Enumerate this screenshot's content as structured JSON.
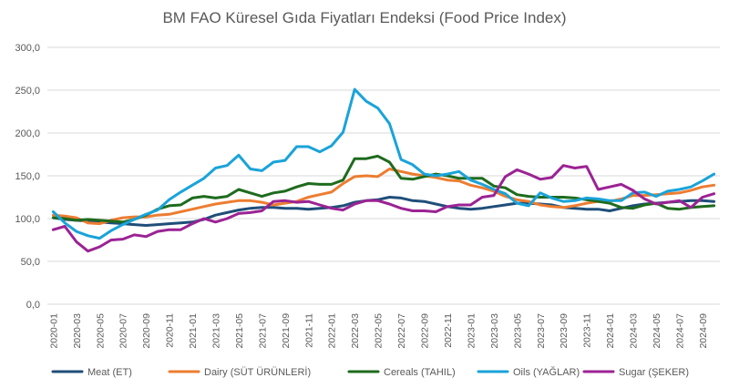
{
  "chart_data": {
    "type": "line",
    "title": "BM FAO Küresel Gıda Fiyatları Endeksi (Food Price Index)",
    "xlabel": "",
    "ylabel": "",
    "ylim": [
      0,
      300
    ],
    "yticks": [
      "0,0",
      "50,0",
      "100,0",
      "150,0",
      "200,0",
      "250,0",
      "300,0"
    ],
    "grid": true,
    "legend_position": "bottom",
    "x": [
      "2020-01",
      "2020-02",
      "2020-03",
      "2020-04",
      "2020-05",
      "2020-06",
      "2020-07",
      "2020-08",
      "2020-09",
      "2020-10",
      "2020-11",
      "2020-12",
      "2021-01",
      "2021-02",
      "2021-03",
      "2021-04",
      "2021-05",
      "2021-06",
      "2021-07",
      "2021-08",
      "2021-09",
      "2021-10",
      "2021-11",
      "2021-12",
      "2022-01",
      "2022-02",
      "2022-03",
      "2022-04",
      "2022-05",
      "2022-06",
      "2022-07",
      "2022-08",
      "2022-09",
      "2022-10",
      "2022-11",
      "2022-12",
      "2023-01",
      "2023-02",
      "2023-03",
      "2023-04",
      "2023-05",
      "2023-06",
      "2023-07",
      "2023-08",
      "2023-09",
      "2023-10",
      "2023-11",
      "2023-12",
      "2024-01",
      "2024-02",
      "2024-03",
      "2024-04",
      "2024-05",
      "2024-06",
      "2024-07",
      "2024-08",
      "2024-09",
      "2024-10"
    ],
    "xtick_labels": [
      "2020-01",
      "2020-03",
      "2020-05",
      "2020-07",
      "2020-09",
      "2020-11",
      "2021-01",
      "2021-03",
      "2021-05",
      "2021-07",
      "2021-09",
      "2021-11",
      "2022-01",
      "2022-03",
      "2022-05",
      "2022-07",
      "2022-09",
      "2022-11",
      "2023-01",
      "2023-03",
      "2023-05",
      "2023-07",
      "2023-09",
      "2023-11",
      "2024-01",
      "2024-03",
      "2024-05",
      "2024-07",
      "2024-09"
    ],
    "series": [
      {
        "name": "Meat (ET)",
        "color": "#1f4e79",
        "values": [
          101,
          99,
          98,
          97,
          96,
          95,
          94,
          93,
          92,
          93,
          94,
          95,
          96,
          99,
          104,
          107,
          110,
          112,
          113,
          113,
          112,
          112,
          111,
          112,
          113,
          115,
          119,
          121,
          122,
          125,
          124,
          121,
          120,
          117,
          114,
          112,
          111,
          112,
          114,
          116,
          118,
          118,
          117,
          116,
          113,
          112,
          111,
          111,
          109,
          112,
          115,
          117,
          118,
          119,
          120,
          121,
          121,
          120
        ],
        "label_pos": "2024-09"
      },
      {
        "name": "Dairy (SÜT ÜRÜNLERİ)",
        "color": "#ed7d31",
        "values": [
          104,
          103,
          101,
          95,
          94,
          98,
          101,
          102,
          102,
          104,
          105,
          108,
          111,
          114,
          117,
          119,
          121,
          121,
          119,
          116,
          118,
          120,
          125,
          128,
          131,
          141,
          149,
          150,
          149,
          158,
          155,
          152,
          150,
          148,
          145,
          144,
          139,
          136,
          132,
          126,
          122,
          120,
          116,
          114,
          113,
          115,
          118,
          120,
          120,
          123,
          127,
          127,
          128,
          129,
          130,
          133,
          137,
          139
        ],
        "label_pos": "2024-09"
      },
      {
        "name": "Cereals (TAHIL)",
        "color": "#1e6b1e",
        "values": [
          101,
          100,
          98,
          99,
          98,
          97,
          96,
          99,
          104,
          111,
          115,
          116,
          124,
          126,
          124,
          126,
          134,
          130,
          126,
          130,
          132,
          137,
          141,
          140,
          140,
          145,
          170,
          170,
          173,
          166,
          147,
          146,
          149,
          152,
          150,
          147,
          147,
          147,
          138,
          136,
          128,
          126,
          125,
          125,
          125,
          124,
          122,
          120,
          118,
          113,
          112,
          116,
          118,
          112,
          111,
          113,
          114,
          115
        ],
        "label_pos": "2024-09"
      },
      {
        "name": "Oils (YAĞLAR)",
        "color": "#1aa3d9",
        "values": [
          108,
          95,
          85,
          80,
          77,
          86,
          93,
          99,
          105,
          110,
          122,
          131,
          139,
          147,
          159,
          162,
          174,
          158,
          156,
          166,
          168,
          184,
          184,
          178,
          185,
          201,
          251,
          237,
          229,
          211,
          169,
          163,
          152,
          150,
          152,
          155,
          145,
          140,
          134,
          129,
          118,
          115,
          130,
          124,
          120,
          121,
          124,
          123,
          121,
          121,
          130,
          131,
          126,
          132,
          134,
          137,
          144,
          152
        ],
        "label_pos": "2024-09"
      },
      {
        "name": "Sugar (ŞEKER)",
        "color": "#9b2394",
        "values": [
          87,
          91,
          73,
          62,
          67,
          75,
          76,
          81,
          79,
          85,
          87,
          87,
          94,
          100,
          96,
          100,
          106,
          107,
          109,
          120,
          121,
          119,
          120,
          116,
          112,
          110,
          117,
          121,
          121,
          117,
          112,
          109,
          109,
          108,
          114,
          116,
          116,
          125,
          127,
          149,
          157,
          152,
          146,
          148,
          162,
          159,
          161,
          134,
          137,
          140,
          133,
          123,
          117,
          119,
          121,
          113,
          125,
          129
        ],
        "label_pos": "2024-09"
      }
    ]
  }
}
